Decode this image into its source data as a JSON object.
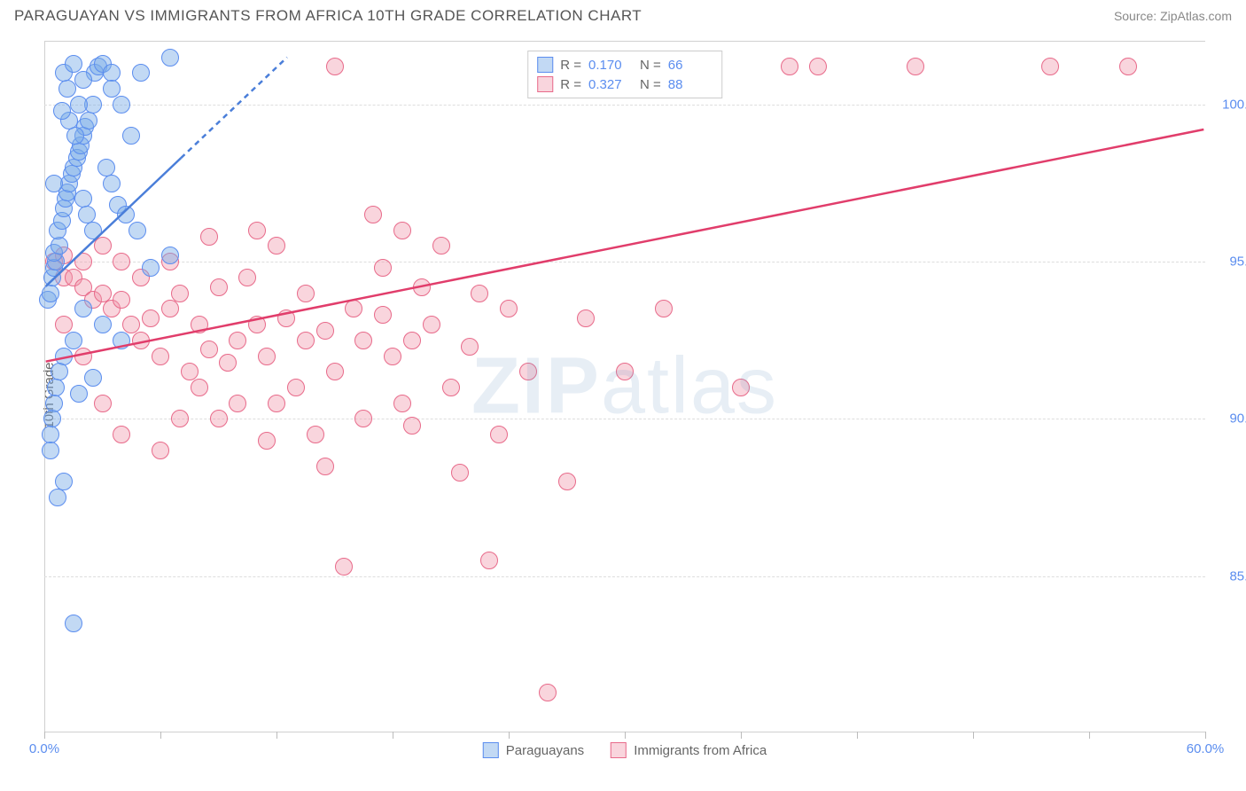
{
  "title": "PARAGUAYAN VS IMMIGRANTS FROM AFRICA 10TH GRADE CORRELATION CHART",
  "source": "Source: ZipAtlas.com",
  "watermark_bold": "ZIP",
  "watermark_rest": "atlas",
  "y_axis_title": "10th Grade",
  "colors": {
    "series1_fill": "rgba(120,170,230,0.45)",
    "series1_stroke": "#5b8def",
    "series2_fill": "rgba(240,150,170,0.40)",
    "series2_stroke": "#e86a8a",
    "axis_label": "#5b8def",
    "grid": "#dddddd",
    "trend1": "#4a7ed9",
    "trend2": "#e13d6b"
  },
  "chart": {
    "type": "scatter",
    "xlim": [
      0,
      60
    ],
    "ylim": [
      80,
      102
    ],
    "x_ticks": [
      0,
      6,
      12,
      18,
      24,
      30,
      36,
      42,
      48,
      54,
      60
    ],
    "x_tick_labels": {
      "0": "0.0%",
      "60": "60.0%"
    },
    "y_grid": [
      85,
      90,
      95,
      100
    ],
    "y_tick_labels": {
      "85": "85.0%",
      "90": "90.0%",
      "95": "95.0%",
      "100": "100.0%"
    },
    "point_radius": 10,
    "series": [
      {
        "name": "Paraguayans",
        "R": "0.170",
        "N": "66",
        "points": [
          [
            0.2,
            93.8
          ],
          [
            0.3,
            94.0
          ],
          [
            0.4,
            94.5
          ],
          [
            0.5,
            94.8
          ],
          [
            0.6,
            95.0
          ],
          [
            0.5,
            95.3
          ],
          [
            0.8,
            95.5
          ],
          [
            0.7,
            96.0
          ],
          [
            0.9,
            96.3
          ],
          [
            1.0,
            96.7
          ],
          [
            1.1,
            97.0
          ],
          [
            1.2,
            97.2
          ],
          [
            1.3,
            97.5
          ],
          [
            1.4,
            97.8
          ],
          [
            1.5,
            98.0
          ],
          [
            1.7,
            98.3
          ],
          [
            1.8,
            98.5
          ],
          [
            1.9,
            98.7
          ],
          [
            2.0,
            99.0
          ],
          [
            2.1,
            99.3
          ],
          [
            2.3,
            99.5
          ],
          [
            2.5,
            100.0
          ],
          [
            2.6,
            101.0
          ],
          [
            2.8,
            101.2
          ],
          [
            3.0,
            101.3
          ],
          [
            3.5,
            101.0
          ],
          [
            3.5,
            100.5
          ],
          [
            4.0,
            100.0
          ],
          [
            4.5,
            99.0
          ],
          [
            5.0,
            101.0
          ],
          [
            6.5,
            95.2
          ],
          [
            6.5,
            101.5
          ],
          [
            5.5,
            94.8
          ],
          [
            3.0,
            93.0
          ],
          [
            2.0,
            93.5
          ],
          [
            1.5,
            92.5
          ],
          [
            1.0,
            92.0
          ],
          [
            0.8,
            91.5
          ],
          [
            0.6,
            91.0
          ],
          [
            0.5,
            90.5
          ],
          [
            0.4,
            90.0
          ],
          [
            0.3,
            89.5
          ],
          [
            0.3,
            89.0
          ],
          [
            1.8,
            90.8
          ],
          [
            2.5,
            91.3
          ],
          [
            4.0,
            92.5
          ],
          [
            1.5,
            83.5
          ],
          [
            1.2,
            100.5
          ],
          [
            1.8,
            100.0
          ],
          [
            2.0,
            97.0
          ],
          [
            2.2,
            96.5
          ],
          [
            2.5,
            96.0
          ],
          [
            1.0,
            88.0
          ],
          [
            0.7,
            87.5
          ],
          [
            3.2,
            98.0
          ],
          [
            3.5,
            97.5
          ],
          [
            3.8,
            96.8
          ],
          [
            4.2,
            96.5
          ],
          [
            4.8,
            96.0
          ],
          [
            1.3,
            99.5
          ],
          [
            1.6,
            99.0
          ],
          [
            0.9,
            99.8
          ],
          [
            1.0,
            101.0
          ],
          [
            1.5,
            101.3
          ],
          [
            2.0,
            100.8
          ],
          [
            0.5,
            97.5
          ]
        ],
        "trend": {
          "x1": 0,
          "y1": 94.2,
          "x2": 12.5,
          "y2": 101.5,
          "dash_from_x": 7.0
        }
      },
      {
        "name": "Immigrants from Africa",
        "R": "0.327",
        "N": "88",
        "points": [
          [
            0.5,
            95.0
          ],
          [
            1.0,
            94.5
          ],
          [
            1.5,
            94.5
          ],
          [
            2.0,
            94.2
          ],
          [
            2.5,
            93.8
          ],
          [
            3.0,
            94.0
          ],
          [
            3.5,
            93.5
          ],
          [
            4.0,
            93.8
          ],
          [
            4.5,
            93.0
          ],
          [
            5.0,
            92.5
          ],
          [
            5.5,
            93.2
          ],
          [
            6.0,
            92.0
          ],
          [
            6.5,
            93.5
          ],
          [
            7.0,
            94.0
          ],
          [
            7.5,
            91.5
          ],
          [
            8.0,
            93.0
          ],
          [
            8.5,
            92.2
          ],
          [
            9.0,
            94.2
          ],
          [
            9.5,
            91.8
          ],
          [
            10.0,
            92.5
          ],
          [
            10.5,
            94.5
          ],
          [
            11.0,
            93.0
          ],
          [
            11.5,
            92.0
          ],
          [
            12.0,
            90.5
          ],
          [
            12.5,
            93.2
          ],
          [
            13.0,
            91.0
          ],
          [
            13.5,
            92.5
          ],
          [
            14.0,
            89.5
          ],
          [
            14.5,
            92.8
          ],
          [
            15.0,
            91.5
          ],
          [
            15.5,
            85.3
          ],
          [
            16.0,
            93.5
          ],
          [
            16.5,
            90.0
          ],
          [
            17.0,
            96.5
          ],
          [
            17.5,
            94.8
          ],
          [
            18.0,
            92.0
          ],
          [
            18.5,
            96.0
          ],
          [
            19.0,
            89.8
          ],
          [
            19.5,
            94.2
          ],
          [
            20.0,
            93.0
          ],
          [
            20.5,
            95.5
          ],
          [
            21.0,
            91.0
          ],
          [
            21.5,
            88.3
          ],
          [
            22.0,
            92.3
          ],
          [
            23.0,
            85.5
          ],
          [
            23.5,
            89.5
          ],
          [
            24.0,
            93.5
          ],
          [
            25.0,
            91.5
          ],
          [
            26.0,
            81.3
          ],
          [
            27.0,
            88.0
          ],
          [
            28.0,
            93.2
          ],
          [
            52.0,
            101.2
          ],
          [
            30.0,
            91.5
          ],
          [
            32.0,
            93.5
          ],
          [
            38.5,
            101.2
          ],
          [
            15.0,
            101.2
          ],
          [
            36.0,
            91.0
          ],
          [
            40.0,
            101.2
          ],
          [
            45.0,
            101.2
          ],
          [
            56.0,
            101.2
          ],
          [
            6.0,
            89.0
          ],
          [
            7.0,
            90.0
          ],
          [
            8.0,
            91.0
          ],
          [
            9.0,
            90.0
          ],
          [
            3.0,
            90.5
          ],
          [
            4.0,
            89.5
          ],
          [
            2.0,
            92.0
          ],
          [
            1.0,
            93.0
          ],
          [
            5.0,
            94.5
          ],
          [
            4.0,
            95.0
          ],
          [
            3.0,
            95.5
          ],
          [
            2.0,
            95.0
          ],
          [
            1.0,
            95.2
          ],
          [
            33.0,
            101.2
          ],
          [
            12.0,
            95.5
          ],
          [
            11.0,
            96.0
          ],
          [
            13.5,
            94.0
          ],
          [
            14.5,
            88.5
          ],
          [
            16.5,
            92.5
          ],
          [
            18.5,
            90.5
          ],
          [
            22.5,
            94.0
          ],
          [
            29.0,
            101.2
          ],
          [
            10.0,
            90.5
          ],
          [
            11.5,
            89.3
          ],
          [
            17.5,
            93.3
          ],
          [
            19.0,
            92.5
          ],
          [
            6.5,
            95.0
          ],
          [
            8.5,
            95.8
          ]
        ],
        "trend": {
          "x1": 0,
          "y1": 91.8,
          "x2": 60,
          "y2": 99.2
        }
      }
    ]
  },
  "stat_legend_labels": {
    "R": "R =",
    "N": "N ="
  },
  "bottom_legend": [
    "Paraguayans",
    "Immigrants from Africa"
  ]
}
